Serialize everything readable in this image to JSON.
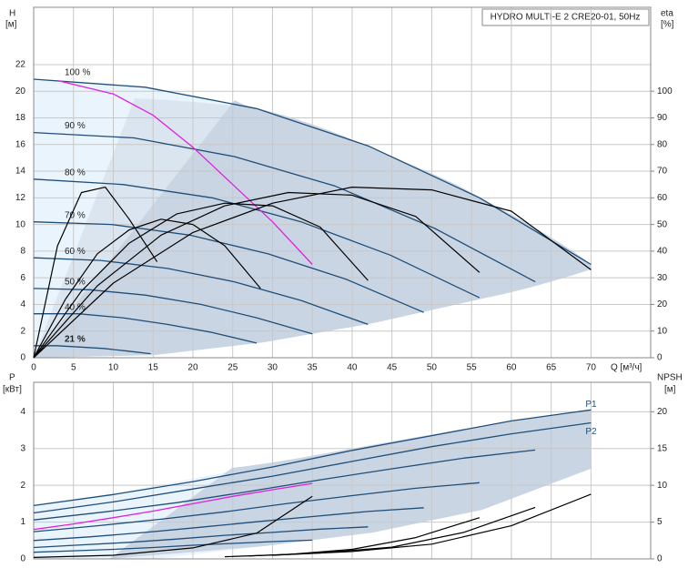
{
  "chart_data": [
    {
      "type": "line",
      "title": "HYDRO MULTI-E 2 CRE20-01, 50Hz",
      "ylabel": "H",
      "yunit": "[м]",
      "y2label": "eta",
      "y2unit": "[%]",
      "xlabel": "Q [м³/ч]",
      "xlim": [
        0,
        77.5
      ],
      "ylim": [
        0,
        26.3
      ],
      "y2lim": [
        0,
        131.5
      ],
      "xticks": [
        0,
        5,
        10,
        15,
        20,
        25,
        30,
        35,
        40,
        45,
        50,
        55,
        60,
        65,
        70
      ],
      "yticks": [
        0,
        2,
        4,
        6,
        8,
        10,
        12,
        14,
        16,
        18,
        20,
        22
      ],
      "y2ticks": [
        0,
        10,
        20,
        30,
        40,
        50,
        60,
        70,
        80,
        90,
        100
      ],
      "grid": true,
      "series": [
        {
          "name": "100 %",
          "color": "#1f4e79",
          "x": [
            0,
            14,
            28,
            42,
            56,
            70
          ],
          "values": [
            20.9,
            20.3,
            18.7,
            15.9,
            12.0,
            7.0
          ]
        },
        {
          "name": "90 %",
          "color": "#1f4e79",
          "x": [
            0,
            12.6,
            25.2,
            37.8,
            50.4,
            63
          ],
          "values": [
            16.9,
            16.5,
            15.1,
            12.9,
            9.7,
            5.7
          ]
        },
        {
          "name": "80 %",
          "color": "#1f4e79",
          "x": [
            0,
            11.2,
            22.4,
            33.6,
            44.8,
            56
          ],
          "values": [
            13.4,
            13.0,
            12.0,
            10.2,
            7.7,
            4.5
          ]
        },
        {
          "name": "70 %",
          "color": "#1f4e79",
          "x": [
            0,
            9.8,
            19.6,
            29.4,
            39.2,
            49
          ],
          "values": [
            10.2,
            10.0,
            9.2,
            7.8,
            5.9,
            3.4
          ]
        },
        {
          "name": "60 %",
          "color": "#1f4e79",
          "x": [
            0,
            8.4,
            16.8,
            25.2,
            33.6,
            42
          ],
          "values": [
            7.5,
            7.3,
            6.7,
            5.7,
            4.3,
            2.5
          ]
        },
        {
          "name": "50 %",
          "color": "#1f4e79",
          "x": [
            0,
            7,
            14,
            21,
            28,
            35
          ],
          "values": [
            5.2,
            5.1,
            4.7,
            4.0,
            3.0,
            1.8
          ]
        },
        {
          "name": "40 %",
          "color": "#1f4e79",
          "x": [
            0,
            5.6,
            11.2,
            16.8,
            22.4,
            28
          ],
          "values": [
            3.3,
            3.3,
            3.0,
            2.5,
            1.9,
            1.1
          ]
        },
        {
          "name": "21 %",
          "color": "#1f4e79",
          "x": [
            0,
            2.9,
            5.9,
            8.8,
            11.8,
            14.7
          ],
          "values": [
            0.9,
            0.9,
            0.8,
            0.7,
            0.5,
            0.3
          ]
        },
        {
          "color": "#e020e0",
          "x": [
            3,
            10,
            15,
            20,
            25,
            30,
            35
          ],
          "values": [
            20.8,
            19.8,
            18.2,
            15.8,
            13.0,
            10.2,
            7.0
          ]
        },
        {
          "color": "#000000",
          "axis": "y2",
          "x": [
            0,
            10,
            20,
            30,
            40,
            50,
            60,
            70
          ],
          "values": [
            0,
            28,
            47,
            58,
            64,
            63,
            55,
            33
          ]
        },
        {
          "color": "#000000",
          "axis": "y2",
          "x": [
            0,
            8,
            16,
            24,
            32,
            40,
            48,
            56
          ],
          "values": [
            0,
            27,
            46,
            57,
            62,
            61,
            53,
            32
          ]
        },
        {
          "color": "#000000",
          "axis": "y2",
          "x": [
            0,
            6,
            12,
            18,
            24,
            30,
            36,
            42
          ],
          "values": [
            0,
            25,
            43,
            54,
            58,
            57,
            49,
            29
          ]
        },
        {
          "color": "#000000",
          "axis": "y2",
          "x": [
            0,
            4,
            8,
            12,
            16,
            20,
            24,
            28.5
          ],
          "values": [
            0,
            22,
            39,
            48,
            52,
            50,
            42,
            26
          ]
        },
        {
          "color": "#000000",
          "axis": "y2",
          "x": [
            0,
            3,
            6,
            9,
            12,
            15.5
          ],
          "values": [
            0,
            42,
            62,
            64,
            52,
            36
          ]
        }
      ]
    },
    {
      "type": "line",
      "ylabel": "P",
      "yunit": "[кВт]",
      "y2label": "NPSH",
      "y2unit": "[м]",
      "xlim": [
        0,
        77.5
      ],
      "ylim": [
        0,
        4.8
      ],
      "y2lim": [
        0,
        24
      ],
      "yticks": [
        0,
        1,
        2,
        3,
        4
      ],
      "y2ticks": [
        0,
        5,
        10,
        15,
        20
      ],
      "grid": true,
      "series": [
        {
          "name": "P1",
          "color": "#1f4e79",
          "x": [
            0,
            10,
            20,
            30,
            40,
            50,
            60,
            70
          ],
          "values": [
            1.45,
            1.75,
            2.1,
            2.5,
            2.95,
            3.35,
            3.75,
            4.05
          ]
        },
        {
          "name": "P2",
          "color": "#1f4e79",
          "x": [
            0,
            10,
            20,
            30,
            40,
            50,
            60,
            70
          ],
          "values": [
            1.25,
            1.55,
            1.9,
            2.25,
            2.65,
            3.05,
            3.4,
            3.7
          ]
        },
        {
          "color": "#1f4e79",
          "x": [
            0,
            9,
            18,
            27,
            36,
            45,
            54,
            63
          ],
          "values": [
            1.06,
            1.28,
            1.53,
            1.83,
            2.15,
            2.45,
            2.74,
            2.96
          ]
        },
        {
          "color": "#1f4e79",
          "x": [
            0,
            8,
            16,
            24,
            32,
            40,
            48,
            56
          ],
          "values": [
            0.74,
            0.9,
            1.08,
            1.28,
            1.51,
            1.72,
            1.92,
            2.07
          ]
        },
        {
          "color": "#1f4e79",
          "x": [
            0,
            7,
            14,
            21,
            28,
            35,
            42,
            49
          ],
          "values": [
            0.5,
            0.6,
            0.72,
            0.86,
            1.01,
            1.15,
            1.29,
            1.39
          ]
        },
        {
          "color": "#1f4e79",
          "x": [
            0,
            6,
            12,
            18,
            24,
            30,
            36,
            42
          ],
          "values": [
            0.31,
            0.38,
            0.45,
            0.54,
            0.64,
            0.72,
            0.81,
            0.87
          ]
        },
        {
          "color": "#1f4e79",
          "x": [
            0,
            5,
            10,
            15,
            20,
            25,
            30,
            35
          ],
          "values": [
            0.18,
            0.22,
            0.26,
            0.31,
            0.37,
            0.42,
            0.47,
            0.51
          ]
        },
        {
          "color": "#e020e0",
          "x": [
            0,
            5,
            10,
            15,
            20,
            25,
            30,
            35
          ],
          "values": [
            0.8,
            0.95,
            1.12,
            1.3,
            1.5,
            1.7,
            1.88,
            2.05
          ]
        },
        {
          "color": "#000000",
          "axis": "y2",
          "x": [
            30,
            40,
            50,
            60,
            70
          ],
          "values": [
            0.5,
            1.0,
            2.0,
            4.5,
            8.8
          ]
        },
        {
          "color": "#000000",
          "axis": "y2",
          "x": [
            27,
            36,
            45,
            54,
            63
          ],
          "values": [
            0.4,
            0.8,
            1.6,
            3.6,
            7.0
          ]
        },
        {
          "color": "#000000",
          "axis": "y2",
          "x": [
            24,
            32,
            40,
            48,
            56
          ],
          "values": [
            0.3,
            0.6,
            1.3,
            2.9,
            5.6
          ]
        },
        {
          "color": "#000000",
          "axis": "y2",
          "x": [
            0,
            10,
            20,
            28,
            35
          ],
          "values": [
            0.2,
            0.5,
            1.5,
            3.5,
            8.5
          ]
        }
      ]
    }
  ]
}
